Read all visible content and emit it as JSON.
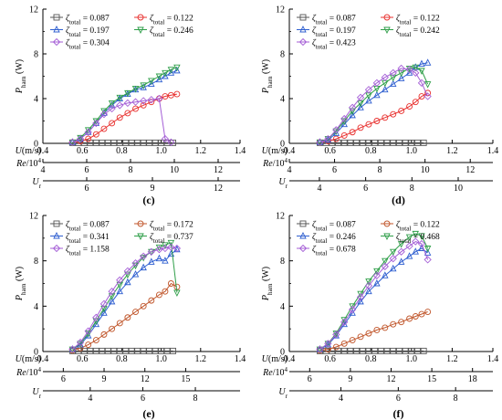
{
  "chart_data": [
    {
      "type": "line",
      "panel_label": "(c)",
      "ylabel": "P_harn (W)",
      "ylim": [
        0,
        12
      ],
      "yticks": [
        0,
        4,
        8,
        12
      ],
      "x_axes": [
        {
          "label": "U(m/s)",
          "range": [
            0.4,
            1.4
          ],
          "ticks": [
            "0.4",
            "0.6",
            "0.8",
            "1.0",
            "1.2",
            "1.4"
          ]
        },
        {
          "label": "Re/10⁴",
          "range": [
            4,
            13
          ],
          "ticks": [
            "4",
            "6",
            "8",
            "10",
            "12"
          ]
        },
        {
          "label": "U_r",
          "range": [
            4,
            13
          ],
          "ticks": [
            "6",
            "9",
            "12"
          ]
        }
      ],
      "xlim": [
        0.4,
        1.4
      ],
      "series": [
        {
          "name": "ζtotal = 0.087",
          "color": "#555555",
          "marker": "square",
          "x": [
            0.55,
            0.58,
            0.61,
            0.64,
            0.67,
            0.7,
            0.73,
            0.76,
            0.79,
            0.82,
            0.85,
            0.88,
            0.91,
            0.94,
            0.97,
            1.0,
            1.03,
            1.06
          ],
          "y": [
            0.05,
            0.05,
            0.05,
            0.05,
            0.05,
            0.05,
            0.05,
            0.05,
            0.05,
            0.05,
            0.05,
            0.05,
            0.05,
            0.05,
            0.05,
            0.05,
            0.05,
            0.05
          ]
        },
        {
          "name": "ζtotal = 0.122",
          "color": "#e8312f",
          "marker": "circle",
          "x": [
            0.55,
            0.59,
            0.63,
            0.67,
            0.71,
            0.75,
            0.79,
            0.83,
            0.87,
            0.91,
            0.95,
            0.99,
            1.02,
            1.05,
            1.08
          ],
          "y": [
            0.1,
            0.2,
            0.4,
            0.8,
            1.3,
            1.8,
            2.3,
            2.7,
            3.1,
            3.4,
            3.7,
            4.0,
            4.2,
            4.3,
            4.4
          ]
        },
        {
          "name": "ζtotal = 0.197",
          "color": "#2f5fd0",
          "marker": "triangle-up",
          "x": [
            0.55,
            0.59,
            0.63,
            0.67,
            0.71,
            0.75,
            0.79,
            0.83,
            0.87,
            0.91,
            0.95,
            0.99,
            1.02,
            1.05,
            1.08
          ],
          "y": [
            0.1,
            0.4,
            1.0,
            1.8,
            2.7,
            3.4,
            4.0,
            4.4,
            4.8,
            5.0,
            5.3,
            5.7,
            6.0,
            6.3,
            6.5
          ]
        },
        {
          "name": "ζtotal = 0.246",
          "color": "#2e9e48",
          "marker": "triangle-down",
          "x": [
            0.55,
            0.59,
            0.63,
            0.67,
            0.71,
            0.75,
            0.79,
            0.83,
            0.87,
            0.91,
            0.95,
            0.99,
            1.02,
            1.05,
            1.08
          ],
          "y": [
            0.1,
            0.5,
            1.2,
            2.0,
            2.9,
            3.6,
            4.1,
            4.5,
            4.9,
            5.2,
            5.6,
            6.0,
            6.3,
            6.6,
            6.8
          ]
        },
        {
          "name": "ζtotal = 0.304",
          "color": "#a45ed6",
          "marker": "diamond",
          "x": [
            0.55,
            0.59,
            0.63,
            0.67,
            0.71,
            0.75,
            0.79,
            0.83,
            0.87,
            0.91,
            0.95,
            0.99,
            1.02,
            1.05
          ],
          "y": [
            0.1,
            0.4,
            1.0,
            1.8,
            2.6,
            3.1,
            3.4,
            3.6,
            3.7,
            3.8,
            3.9,
            4.0,
            0.4,
            0.1
          ]
        }
      ]
    },
    {
      "type": "line",
      "panel_label": "(d)",
      "ylabel": "P_harn (W)",
      "ylim": [
        0,
        12
      ],
      "yticks": [
        0,
        4,
        8,
        12
      ],
      "x_axes": [
        {
          "label": "U(m/s)",
          "range": [
            0.4,
            1.4
          ],
          "ticks": [
            "0.4",
            "0.6",
            "0.8",
            "1.0",
            "1.2",
            "1.4"
          ]
        },
        {
          "label": "Re/10⁴",
          "range": [
            4,
            13
          ],
          "ticks": [
            "4",
            "6",
            "8",
            "10",
            "12"
          ]
        },
        {
          "label": "U_r",
          "range": [
            2.7,
            11.5
          ],
          "ticks": [
            "4",
            "6",
            "8",
            "10"
          ]
        }
      ],
      "xlim": [
        0.4,
        1.4
      ],
      "series": [
        {
          "name": "ζtotal = 0.087",
          "color": "#555555",
          "marker": "square",
          "x": [
            0.55,
            0.58,
            0.61,
            0.64,
            0.67,
            0.7,
            0.73,
            0.76,
            0.79,
            0.82,
            0.85,
            0.88,
            0.91,
            0.94,
            0.97,
            1.0,
            1.03,
            1.06
          ],
          "y": [
            0.05,
            0.05,
            0.05,
            0.05,
            0.05,
            0.05,
            0.05,
            0.05,
            0.05,
            0.05,
            0.05,
            0.05,
            0.05,
            0.05,
            0.05,
            0.05,
            0.05,
            0.05
          ]
        },
        {
          "name": "ζtotal = 0.122",
          "color": "#e8312f",
          "marker": "circle",
          "x": [
            0.55,
            0.59,
            0.63,
            0.67,
            0.71,
            0.75,
            0.79,
            0.83,
            0.87,
            0.91,
            0.95,
            0.99,
            1.02,
            1.05,
            1.08
          ],
          "y": [
            0.1,
            0.2,
            0.4,
            0.7,
            1.0,
            1.4,
            1.7,
            2.0,
            2.3,
            2.6,
            2.9,
            3.3,
            3.7,
            4.2,
            4.5
          ]
        },
        {
          "name": "ζtotal = 0.197",
          "color": "#2f5fd0",
          "marker": "triangle-up",
          "x": [
            0.55,
            0.59,
            0.63,
            0.67,
            0.71,
            0.75,
            0.79,
            0.83,
            0.87,
            0.91,
            0.95,
            0.99,
            1.02,
            1.05,
            1.08
          ],
          "y": [
            0.1,
            0.3,
            0.9,
            1.7,
            2.5,
            3.2,
            3.8,
            4.3,
            4.8,
            5.3,
            5.8,
            6.3,
            6.8,
            7.1,
            7.2
          ]
        },
        {
          "name": "ζtotal = 0.242",
          "color": "#2e9e48",
          "marker": "triangle-down",
          "x": [
            0.55,
            0.59,
            0.63,
            0.67,
            0.71,
            0.75,
            0.79,
            0.83,
            0.87,
            0.91,
            0.95,
            0.99,
            1.02,
            1.05,
            1.08
          ],
          "y": [
            0.1,
            0.4,
            1.1,
            2.0,
            2.9,
            3.6,
            4.3,
            4.9,
            5.4,
            5.9,
            6.3,
            6.7,
            6.8,
            6.5,
            5.3
          ]
        },
        {
          "name": "ζtotal = 0.423",
          "color": "#a45ed6",
          "marker": "diamond",
          "x": [
            0.55,
            0.59,
            0.63,
            0.67,
            0.71,
            0.75,
            0.79,
            0.83,
            0.87,
            0.91,
            0.95,
            0.99,
            1.02,
            1.05,
            1.08
          ],
          "y": [
            0.1,
            0.4,
            1.2,
            2.2,
            3.2,
            4.1,
            4.8,
            5.4,
            5.9,
            6.3,
            6.7,
            6.6,
            6.3,
            5.4,
            4.2
          ]
        }
      ]
    },
    {
      "type": "line",
      "panel_label": "(e)",
      "ylabel": "P_harn (W)",
      "ylim": [
        0,
        12
      ],
      "yticks": [
        0,
        4,
        8,
        12
      ],
      "x_axes": [
        {
          "label": "U(m/s)",
          "range": [
            0.4,
            1.4
          ],
          "ticks": [
            "0.4",
            "0.6",
            "0.8",
            "1.0",
            "1.2",
            "1.4"
          ]
        },
        {
          "label": "Re/10⁴",
          "range": [
            4.5,
            19
          ],
          "ticks": [
            "6",
            "9",
            "12",
            "15"
          ]
        },
        {
          "label": "U_r",
          "range": [
            2.2,
            9.7
          ],
          "ticks": [
            "4",
            "6",
            "8"
          ]
        }
      ],
      "xlim": [
        0.4,
        1.4
      ],
      "series": [
        {
          "name": "ζtotal = 0.087",
          "color": "#555555",
          "marker": "square",
          "x": [
            0.55,
            0.58,
            0.61,
            0.64,
            0.67,
            0.7,
            0.73,
            0.76,
            0.79,
            0.82,
            0.85,
            0.88,
            0.91,
            0.94,
            0.97,
            1.0,
            1.03,
            1.06
          ],
          "y": [
            0.05,
            0.05,
            0.05,
            0.05,
            0.05,
            0.05,
            0.05,
            0.05,
            0.05,
            0.05,
            0.05,
            0.05,
            0.05,
            0.05,
            0.05,
            0.05,
            0.05,
            0.05
          ]
        },
        {
          "name": "ζtotal = 0.172",
          "color": "#c0552a",
          "marker": "circle",
          "x": [
            0.55,
            0.59,
            0.63,
            0.67,
            0.71,
            0.75,
            0.79,
            0.83,
            0.87,
            0.91,
            0.95,
            0.99,
            1.02,
            1.05,
            1.08
          ],
          "y": [
            0.1,
            0.3,
            0.6,
            1.0,
            1.5,
            2.0,
            2.5,
            3.0,
            3.5,
            4.0,
            4.5,
            5.0,
            5.3,
            6.0,
            5.7
          ]
        },
        {
          "name": "ζtotal = 0.341",
          "color": "#2f5fd0",
          "marker": "triangle-up",
          "x": [
            0.55,
            0.59,
            0.63,
            0.67,
            0.71,
            0.75,
            0.79,
            0.83,
            0.87,
            0.91,
            0.95,
            0.99,
            1.02,
            1.05,
            1.08
          ],
          "y": [
            0.2,
            0.6,
            1.4,
            2.4,
            3.4,
            4.4,
            5.3,
            6.1,
            6.8,
            7.4,
            7.9,
            8.2,
            8.0,
            8.6,
            9.0
          ]
        },
        {
          "name": "ζtotal = 0.737",
          "color": "#2e9e48",
          "marker": "triangle-down",
          "x": [
            0.55,
            0.59,
            0.63,
            0.67,
            0.71,
            0.75,
            0.79,
            0.83,
            0.87,
            0.91,
            0.95,
            0.99,
            1.02,
            1.05,
            1.08
          ],
          "y": [
            0.2,
            0.7,
            1.6,
            2.7,
            3.8,
            4.9,
            5.9,
            6.8,
            7.6,
            8.3,
            8.8,
            9.2,
            9.4,
            9.6,
            5.2
          ]
        },
        {
          "name": "ζtotal = 1.158",
          "color": "#a45ed6",
          "marker": "diamond",
          "x": [
            0.55,
            0.59,
            0.63,
            0.67,
            0.71,
            0.75,
            0.79,
            0.83,
            0.87,
            0.91,
            0.95,
            0.99,
            1.02,
            1.05,
            1.08
          ],
          "y": [
            0.2,
            0.8,
            1.8,
            3.0,
            4.2,
            5.3,
            6.3,
            7.1,
            7.8,
            8.4,
            8.8,
            9.0,
            9.1,
            9.2,
            9.1
          ]
        }
      ]
    },
    {
      "type": "line",
      "panel_label": "(f)",
      "ylabel": "P_harn (W)",
      "ylim": [
        0,
        12
      ],
      "yticks": [
        0,
        4,
        8,
        12
      ],
      "x_axes": [
        {
          "label": "U(m/s)",
          "range": [
            0.4,
            1.4
          ],
          "ticks": [
            "0.4",
            "0.6",
            "0.8",
            "1.0",
            "1.2",
            "1.4"
          ]
        },
        {
          "label": "Re/10⁴",
          "range": [
            4.5,
            19.5
          ],
          "ticks": [
            "6",
            "9",
            "12",
            "15",
            "18"
          ]
        },
        {
          "label": "U_r",
          "range": [
            2.2,
            9.3
          ],
          "ticks": [
            "4",
            "6",
            "8"
          ]
        }
      ],
      "xlim": [
        0.4,
        1.4
      ],
      "series": [
        {
          "name": "ζtotal = 0.087",
          "color": "#555555",
          "marker": "square",
          "x": [
            0.55,
            0.58,
            0.61,
            0.64,
            0.67,
            0.7,
            0.73,
            0.76,
            0.79,
            0.82,
            0.85,
            0.88,
            0.91,
            0.94,
            0.97,
            1.0,
            1.03,
            1.06
          ],
          "y": [
            0.05,
            0.05,
            0.05,
            0.05,
            0.05,
            0.05,
            0.05,
            0.05,
            0.05,
            0.05,
            0.05,
            0.05,
            0.05,
            0.05,
            0.05,
            0.05,
            0.05,
            0.05
          ]
        },
        {
          "name": "ζtotal = 0.122",
          "color": "#c0552a",
          "marker": "circle",
          "x": [
            0.55,
            0.59,
            0.63,
            0.67,
            0.71,
            0.75,
            0.79,
            0.83,
            0.87,
            0.91,
            0.95,
            0.99,
            1.02,
            1.05,
            1.08
          ],
          "y": [
            0.1,
            0.2,
            0.4,
            0.7,
            1.0,
            1.3,
            1.6,
            1.9,
            2.1,
            2.4,
            2.6,
            2.9,
            3.1,
            3.3,
            3.5
          ]
        },
        {
          "name": "ζtotal = 0.246",
          "color": "#2f5fd0",
          "marker": "triangle-up",
          "x": [
            0.55,
            0.59,
            0.63,
            0.67,
            0.71,
            0.75,
            0.79,
            0.83,
            0.87,
            0.91,
            0.95,
            0.99,
            1.02,
            1.05,
            1.08
          ],
          "y": [
            0.2,
            0.6,
            1.4,
            2.4,
            3.4,
            4.4,
            5.3,
            6.0,
            6.7,
            7.3,
            7.9,
            8.4,
            8.8,
            9.1,
            8.7
          ]
        },
        {
          "name": "ζtotal = 0.468",
          "color": "#2e9e48",
          "marker": "triangle-down",
          "x": [
            0.55,
            0.59,
            0.63,
            0.67,
            0.71,
            0.75,
            0.79,
            0.83,
            0.87,
            0.91,
            0.95,
            0.99,
            1.02,
            1.05,
            1.08
          ],
          "y": [
            0.2,
            0.7,
            1.6,
            2.8,
            4.0,
            5.1,
            6.2,
            7.1,
            8.0,
            8.8,
            9.5,
            10.1,
            10.4,
            10.2,
            9.1
          ]
        },
        {
          "name": "ζtotal = 0.678",
          "color": "#a45ed6",
          "marker": "diamond",
          "x": [
            0.55,
            0.59,
            0.63,
            0.67,
            0.71,
            0.75,
            0.79,
            0.83,
            0.87,
            0.91,
            0.95,
            0.99,
            1.02,
            1.05,
            1.08
          ],
          "y": [
            0.2,
            0.7,
            1.5,
            2.6,
            3.7,
            4.8,
            5.8,
            6.7,
            7.5,
            8.2,
            8.8,
            9.3,
            9.7,
            9.5,
            8.1
          ]
        }
      ]
    }
  ]
}
